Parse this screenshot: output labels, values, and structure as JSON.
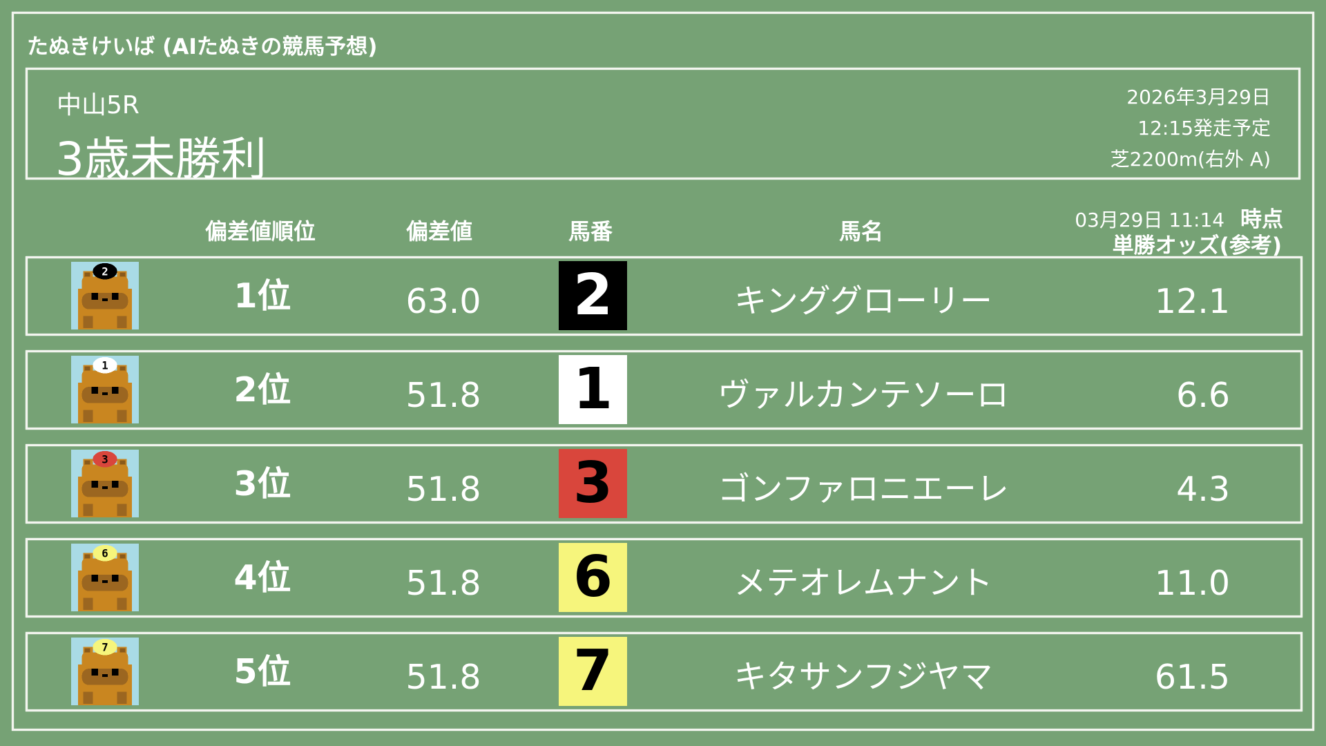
{
  "app_title": "たぬきけいば (AIたぬきの競馬予想)",
  "race": {
    "venue_round": "中山5R",
    "race_name": "3歳未勝利",
    "date": "2026年3月29日",
    "post_time": "12:15発走予定",
    "course": "芝2200m(右外 A)"
  },
  "columns": {
    "rank": "偏差値順位",
    "score": "偏差値",
    "number": "馬番",
    "name": "馬名",
    "odds_time": "03月29日 11:14",
    "odds_time_suffix": "時点",
    "odds": "単勝オッズ(参考)"
  },
  "rows": [
    {
      "rank": "1位",
      "score": "63.0",
      "number": "2",
      "name": "キンググローリー",
      "odds": "12.1",
      "box_color": "#000000",
      "num_color": "#ffffff",
      "icon": "tanuki-icon"
    },
    {
      "rank": "2位",
      "score": "51.8",
      "number": "1",
      "name": "ヴァルカンテソーロ",
      "odds": "6.6",
      "box_color": "#ffffff",
      "num_color": "#000000",
      "icon": "tanuki-icon"
    },
    {
      "rank": "3位",
      "score": "51.8",
      "number": "3",
      "name": "ゴンファロニエーレ",
      "odds": "4.3",
      "box_color": "#d9463c",
      "num_color": "#000000",
      "icon": "tanuki-icon"
    },
    {
      "rank": "4位",
      "score": "51.8",
      "number": "6",
      "name": "メテオレムナント",
      "odds": "11.0",
      "box_color": "#f6f57c",
      "num_color": "#000000",
      "icon": "tanuki-icon"
    },
    {
      "rank": "5位",
      "score": "51.8",
      "number": "7",
      "name": "キタサンフジヤマ",
      "odds": "61.5",
      "box_color": "#f6f57c",
      "num_color": "#000000",
      "icon": "tanuki-icon"
    }
  ],
  "colors": {
    "background": "#76a275",
    "chalk": "#f3f5ef"
  }
}
